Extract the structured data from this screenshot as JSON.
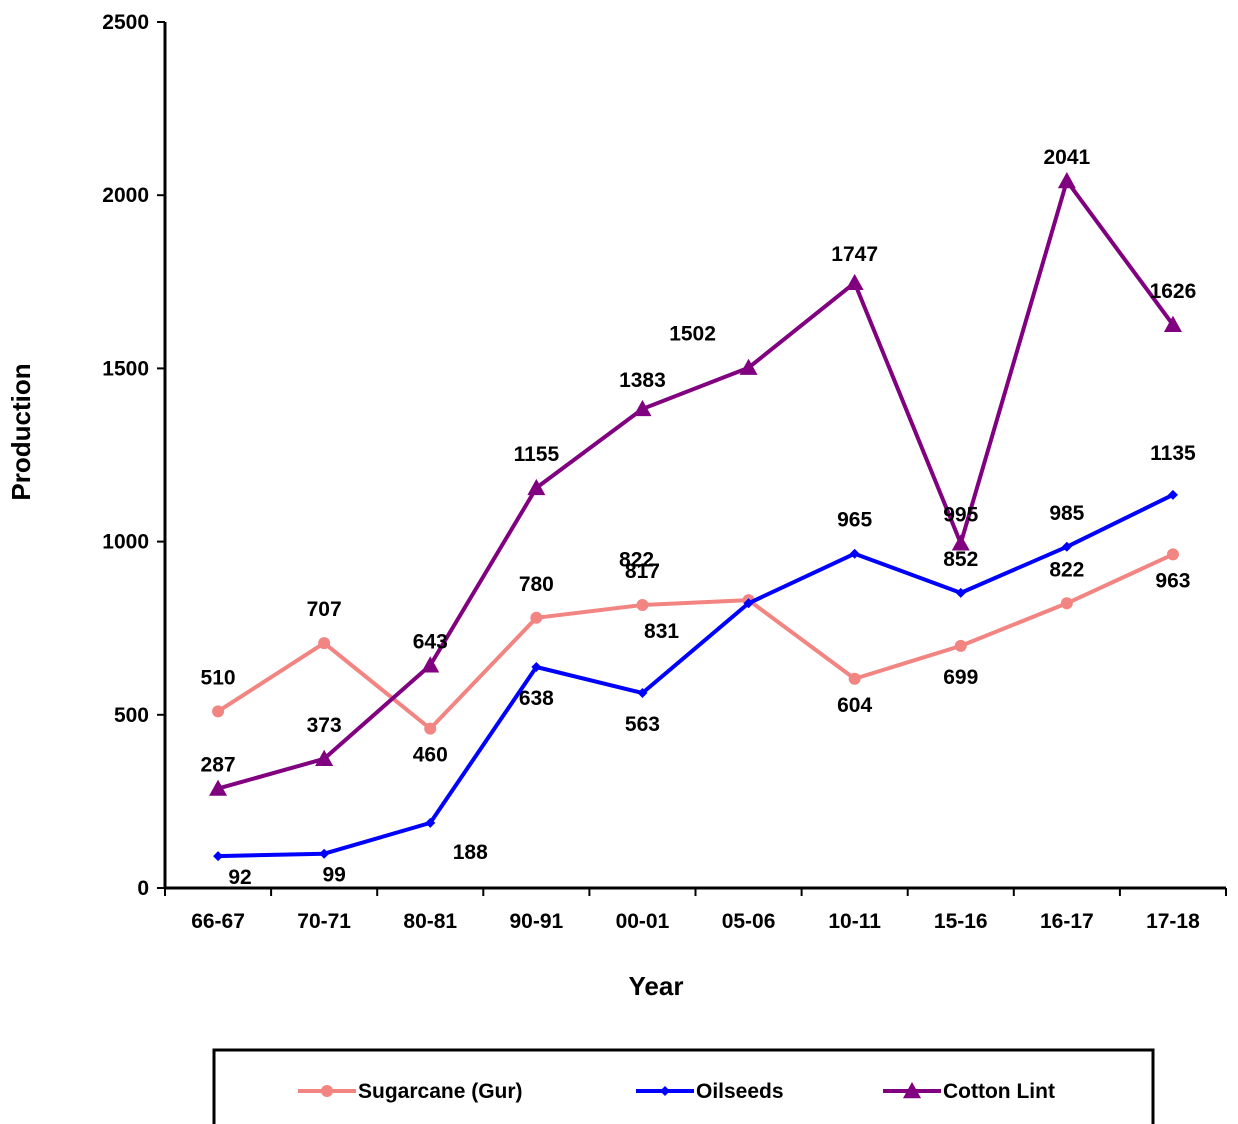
{
  "chart_data": {
    "type": "line",
    "xlabel": "Year",
    "ylabel": "Production",
    "categories": [
      "66-67",
      "70-71",
      "80-81",
      "90-91",
      "00-01",
      "05-06",
      "10-11",
      "15-16",
      "16-17",
      "17-18"
    ],
    "ylim": [
      0,
      2500
    ],
    "yticks": [
      0,
      500,
      1000,
      1500,
      2000,
      2500
    ],
    "grid": false,
    "legend_position": "bottom",
    "series": [
      {
        "name": "Sugarcane (Gur)",
        "color": "#F28482",
        "marker": "circle",
        "values": [
          510,
          707,
          460,
          780,
          817,
          831,
          604,
          699,
          822,
          963
        ],
        "labels": [
          "510",
          "707",
          "460",
          "780",
          "817",
          "831",
          "604",
          "699",
          "822",
          "963"
        ]
      },
      {
        "name": "Oilseeds",
        "color": "#0000FF",
        "marker": "diamond",
        "values": [
          92,
          99,
          188,
          638,
          563,
          822,
          965,
          852,
          985,
          1135
        ],
        "labels": [
          "92",
          "99",
          "188",
          "638",
          "563",
          "822",
          "965",
          "852",
          "985",
          "1135"
        ]
      },
      {
        "name": "Cotton Lint",
        "color": "#800080",
        "marker": "triangle",
        "values": [
          287,
          373,
          643,
          1155,
          1383,
          1502,
          1747,
          995,
          2041,
          1626
        ],
        "labels": [
          "287",
          "373",
          "643",
          "1155",
          "1383",
          "1502",
          "1747",
          "995",
          "2041",
          "1626"
        ]
      }
    ]
  }
}
